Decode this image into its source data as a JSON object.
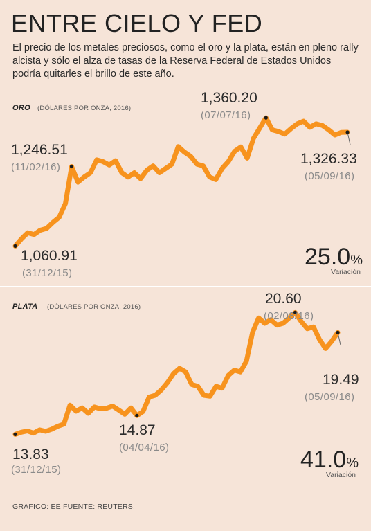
{
  "header": {
    "title": "ENTRE CIELO Y FED",
    "description": "El precio de los metales preciosos, como el oro y la plata, están en pleno rally alcista y sólo el alza de tasas de la Reserva Federal de Estados Unidos podría quitarles el brillo de este año."
  },
  "colors": {
    "line": "#f7931e",
    "background": "#f6e4d8",
    "point": "#1a1a1a"
  },
  "gold": {
    "label": "ORO",
    "unit": "(DÓLARES POR ONZA, 2016)",
    "start": {
      "value": "1,060.91",
      "date": "(31/12/15)"
    },
    "peak1": {
      "value": "1,246.51",
      "date": "(11/02/16)"
    },
    "max": {
      "value": "1,360.20",
      "date": "(07/07/16)"
    },
    "end": {
      "value": "1,326.33",
      "date": "(05/09/16)"
    },
    "change": "25.0",
    "change_symbol": "%",
    "change_label": "Variación"
  },
  "silver": {
    "label": "PLATA",
    "unit": "(DÓLARES POR ONZA, 2016)",
    "start": {
      "value": "13.83",
      "date": "(31/12/15)"
    },
    "low": {
      "value": "14.87",
      "date": "(04/04/16)"
    },
    "max": {
      "value": "20.60",
      "date": "(02/08/16)"
    },
    "end": {
      "value": "19.49",
      "date": "(05/09/16)"
    },
    "change": "41.0",
    "change_symbol": "%",
    "change_label": "Variación"
  },
  "footer": "GRÁFICO: EE FUENTE: REUTERS.",
  "chart_data": [
    {
      "type": "line",
      "title": "ORO",
      "ylabel": "(DÓLARES POR ONZA, 2016)",
      "ylim": [
        1060,
        1370
      ],
      "x": [
        "31/12/15",
        "06/01/16",
        "11/01/16",
        "15/01/16",
        "20/01/16",
        "25/01/16",
        "29/01/16",
        "03/02/16",
        "08/02/16",
        "11/02/16",
        "16/02/16",
        "22/02/16",
        "26/02/16",
        "02/03/16",
        "07/03/16",
        "11/03/16",
        "16/03/16",
        "21/03/16",
        "25/03/16",
        "30/03/16",
        "04/04/16",
        "08/04/16",
        "13/04/16",
        "18/04/16",
        "22/04/16",
        "27/04/16",
        "02/05/16",
        "06/05/16",
        "11/05/16",
        "16/05/16",
        "20/05/16",
        "25/05/16",
        "30/05/16",
        "03/06/16",
        "08/06/16",
        "13/06/16",
        "17/06/16",
        "22/06/16",
        "27/06/16",
        "01/07/16",
        "07/07/16",
        "12/07/16",
        "16/07/16",
        "21/07/16",
        "26/07/16",
        "30/07/16",
        "04/08/16",
        "09/08/16",
        "13/08/16",
        "18/08/16",
        "23/08/16",
        "27/08/16",
        "01/09/16",
        "05/09/16"
      ],
      "values": [
        1060.91,
        1078,
        1092,
        1088,
        1098,
        1102,
        1116,
        1128,
        1160,
        1246.51,
        1210,
        1222,
        1232,
        1262,
        1258,
        1250,
        1260,
        1232,
        1222,
        1232,
        1218,
        1238,
        1248,
        1232,
        1242,
        1252,
        1293,
        1280,
        1270,
        1252,
        1248,
        1222,
        1216,
        1242,
        1258,
        1282,
        1292,
        1266,
        1312,
        1336,
        1360.2,
        1332,
        1328,
        1322,
        1335,
        1346,
        1352,
        1338,
        1346,
        1342,
        1332,
        1320,
        1326,
        1326.33
      ]
    },
    {
      "type": "line",
      "title": "PLATA",
      "ylabel": "(DÓLARES POR ONZA, 2016)",
      "ylim": [
        13.5,
        21
      ],
      "x": [
        "31/12/15",
        "06/01/16",
        "11/01/16",
        "15/01/16",
        "20/01/16",
        "25/01/16",
        "29/01/16",
        "03/02/16",
        "08/02/16",
        "11/02/16",
        "16/02/16",
        "22/02/16",
        "26/02/16",
        "02/03/16",
        "07/03/16",
        "11/03/16",
        "16/03/16",
        "21/03/16",
        "25/03/16",
        "30/03/16",
        "04/04/16",
        "08/04/16",
        "13/04/16",
        "18/04/16",
        "22/04/16",
        "27/04/16",
        "02/05/16",
        "06/05/16",
        "11/05/16",
        "16/05/16",
        "20/05/16",
        "25/05/16",
        "30/05/16",
        "03/06/16",
        "08/06/16",
        "13/06/16",
        "17/06/16",
        "22/06/16",
        "27/06/16",
        "01/07/16",
        "07/07/16",
        "12/07/16",
        "16/07/16",
        "21/07/16",
        "26/07/16",
        "30/07/16",
        "02/08/16",
        "09/08/16",
        "13/08/16",
        "18/08/16",
        "23/08/16",
        "27/08/16",
        "01/09/16",
        "05/09/16"
      ],
      "values": [
        13.83,
        13.95,
        14.02,
        13.9,
        14.08,
        14.0,
        14.12,
        14.28,
        14.4,
        15.45,
        15.12,
        15.3,
        15.0,
        15.35,
        15.25,
        15.28,
        15.4,
        15.18,
        14.95,
        15.3,
        14.87,
        15.1,
        15.9,
        16.0,
        16.3,
        16.7,
        17.2,
        17.5,
        17.3,
        16.6,
        16.5,
        16.0,
        15.95,
        16.5,
        16.4,
        17.1,
        17.4,
        17.3,
        17.9,
        19.5,
        20.3,
        20.0,
        20.2,
        19.9,
        20.0,
        20.3,
        20.6,
        20.1,
        19.7,
        19.8,
        19.1,
        18.6,
        19.0,
        19.49
      ]
    }
  ]
}
